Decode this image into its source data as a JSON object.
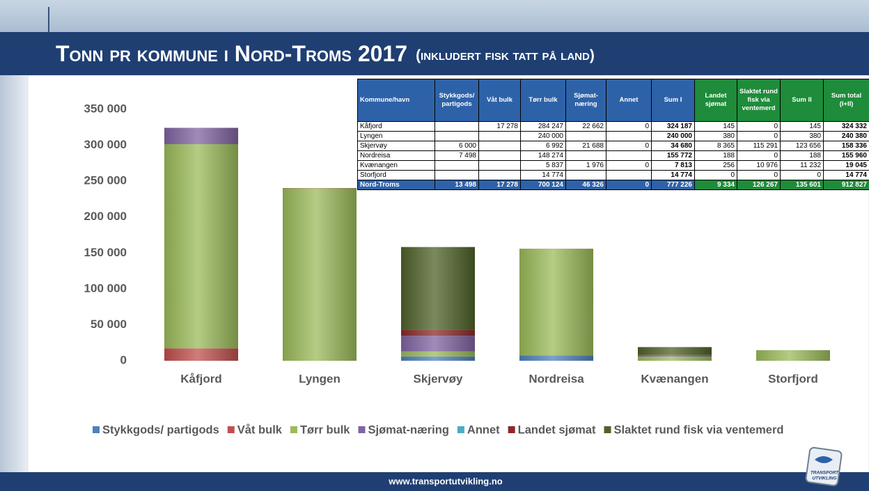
{
  "chart_data": {
    "type": "stacked_bar",
    "title": "Tonn pr kommune i Nord-Troms 2017",
    "subtitle": "(inkludert fisk tatt på land)",
    "categories": [
      "Kåfjord",
      "Lyngen",
      "Skjervøy",
      "Nordreisa",
      "Kvænangen",
      "Storfjord"
    ],
    "series": [
      {
        "name": "Stykkgods/ partigods",
        "color": "#4f81bd",
        "values": [
          null,
          null,
          6000,
          7498,
          null,
          null
        ]
      },
      {
        "name": "Våt bulk",
        "color": "#c0504d",
        "values": [
          17278,
          null,
          null,
          null,
          null,
          null
        ]
      },
      {
        "name": "Tørr bulk",
        "color": "#9bbb59",
        "values": [
          284247,
          240000,
          6992,
          148274,
          5837,
          14774
        ]
      },
      {
        "name": "Sjømat-næring",
        "color": "#8064a2",
        "values": [
          22662,
          null,
          21688,
          null,
          1976,
          null
        ]
      },
      {
        "name": "Annet",
        "color": "#4bacc6",
        "values": [
          0,
          null,
          0,
          null,
          0,
          null
        ]
      },
      {
        "name": "Landet sjømat",
        "color": "#8b2a2a",
        "values": [
          145,
          380,
          8365,
          188,
          256,
          0
        ]
      },
      {
        "name": "Slaktet rund fisk via ventemerd",
        "color": "#4f6228",
        "values": [
          0,
          0,
          115291,
          0,
          10976,
          0
        ]
      }
    ],
    "ylim": [
      0,
      350000
    ],
    "yticks": [
      0,
      {
        "value": 50000,
        "label": "50 000"
      },
      {
        "value": 100000,
        "label": "100 000"
      },
      {
        "value": 150000,
        "label": "150 000"
      },
      {
        "value": 200000,
        "label": "200 000"
      },
      {
        "value": 250000,
        "label": "250 000"
      },
      {
        "value": 300000,
        "label": "300 000"
      },
      {
        "value": 350000,
        "label": "350 000"
      }
    ],
    "legend": "bottom"
  },
  "table": {
    "header": [
      "Kommune/havn",
      "Stykkgods/ partigods",
      "Våt bulk",
      "Tørr bulk",
      "Sjømat-næring",
      "Annet",
      "Sum I",
      "Landet sjømat",
      "Slaktet rund fisk via ventemerd",
      "Sum II",
      "Sum total (I+II)"
    ],
    "rows": [
      [
        "Kåfjord",
        null,
        "17 278",
        "284 247",
        "22 662",
        "0",
        "324 187",
        "145",
        "0",
        "145",
        "324 332"
      ],
      [
        "Lyngen",
        null,
        null,
        "240 000",
        null,
        null,
        "240 000",
        "380",
        "0",
        "380",
        "240 380"
      ],
      [
        "Skjervøy",
        "6 000",
        null,
        "6 992",
        "21 688",
        "0",
        "34 680",
        "8 365",
        "115 291",
        "123 656",
        "158 336"
      ],
      [
        "Nordreisa",
        "7 498",
        null,
        "148 274",
        null,
        null,
        "155 772",
        "188",
        "0",
        "188",
        "155 960"
      ],
      [
        "Kvænangen",
        null,
        null,
        "5 837",
        "1 976",
        "0",
        "7 813",
        "256",
        "10 976",
        "11 232",
        "19 045"
      ],
      [
        "Storfjord",
        null,
        null,
        "14 774",
        null,
        null,
        "14 774",
        "0",
        "0",
        "0",
        "14 774"
      ]
    ],
    "total": [
      "Nord-Troms",
      "13 498",
      "17 278",
      "700 124",
      "46 326",
      "0",
      "777 226",
      "9 334",
      "126 267",
      "135 601",
      "912 827"
    ]
  },
  "footer": "www.transportutvikling.no",
  "logo_text": [
    "TRANSPORT",
    "UTVIKLING"
  ]
}
